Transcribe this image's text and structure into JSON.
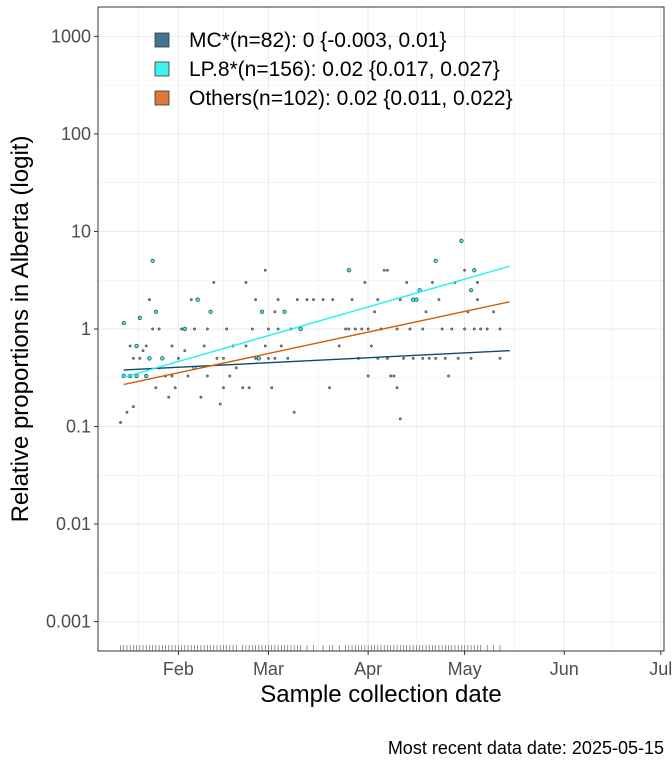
{
  "chart_data": {
    "type": "scatter",
    "xlabel": "Sample collection date",
    "ylabel": "Relative proportions in Alberta (logit)",
    "caption": "Most recent data date: 2025-05-15",
    "y_scale": "log",
    "ylim": [
      0.0005,
      2000
    ],
    "y_ticks": [
      0.001,
      0.01,
      0.1,
      1,
      10,
      100,
      1000
    ],
    "y_tick_labels": [
      "0.001",
      "0.01",
      "0.1",
      "1",
      "10",
      "100",
      "1000"
    ],
    "xlim": [
      "2025-01-07",
      "2025-07-02"
    ],
    "x_ticks": [
      "2025-02-01",
      "2025-03-01",
      "2025-04-01",
      "2025-05-01",
      "2025-06-01",
      "2025-07-01"
    ],
    "x_tick_labels": [
      "Feb",
      "Mar",
      "Apr",
      "May",
      "Jun",
      "Jul"
    ],
    "grid": true,
    "legend_position": "top-left",
    "colors": {
      "mc": "#0b4a6e",
      "lp8": "#1ef2f2",
      "others": "#d55e00",
      "legend_mc": "#44758f",
      "legend_lp8": "#3ff2f2",
      "legend_others": "#de7a35",
      "points": "#2a2a2a",
      "grid": "#ebebeb",
      "panel_border": "#333333"
    },
    "series": [
      {
        "key": "mc",
        "name": "MC*(n=82): 0 {-0.003, 0.01}",
        "fit": {
          "x": [
            "2025-01-15",
            "2025-05-15"
          ],
          "y": [
            0.38,
            0.6
          ]
        }
      },
      {
        "key": "lp8",
        "name": "LP.8*(n=156): 0.02 {0.017, 0.027}",
        "fit": {
          "x": [
            "2025-01-15",
            "2025-05-15"
          ],
          "y": [
            0.32,
            4.4
          ]
        }
      },
      {
        "key": "others",
        "name": "Others(n=102): 0.02 {0.011, 0.022}",
        "fit": {
          "x": [
            "2025-01-15",
            "2025-05-15"
          ],
          "y": [
            0.27,
            1.9
          ]
        }
      }
    ],
    "points": [
      {
        "x": "2025-01-14",
        "y": 0.11,
        "s": "mc"
      },
      {
        "x": "2025-01-15",
        "y": 0.33,
        "s": "lp8"
      },
      {
        "x": "2025-01-15",
        "y": 1.15,
        "s": "lp8"
      },
      {
        "x": "2025-01-16",
        "y": 0.14,
        "s": "mc"
      },
      {
        "x": "2025-01-17",
        "y": 0.67,
        "s": "mc"
      },
      {
        "x": "2025-01-17",
        "y": 0.33,
        "s": "lp8"
      },
      {
        "x": "2025-01-18",
        "y": 0.16,
        "s": "mc"
      },
      {
        "x": "2025-01-18",
        "y": 0.5,
        "s": "mc"
      },
      {
        "x": "2025-01-19",
        "y": 0.67,
        "s": "lp8"
      },
      {
        "x": "2025-01-19",
        "y": 0.33,
        "s": "lp8"
      },
      {
        "x": "2025-01-20",
        "y": 1.3,
        "s": "lp8"
      },
      {
        "x": "2025-01-20",
        "y": 0.5,
        "s": "mc"
      },
      {
        "x": "2025-01-21",
        "y": 0.6,
        "s": "mc"
      },
      {
        "x": "2025-01-22",
        "y": 0.67,
        "s": "mc"
      },
      {
        "x": "2025-01-22",
        "y": 0.33,
        "s": "lp8"
      },
      {
        "x": "2025-01-23",
        "y": 2.0,
        "s": "mc"
      },
      {
        "x": "2025-01-23",
        "y": 0.5,
        "s": "lp8"
      },
      {
        "x": "2025-01-24",
        "y": 5.0,
        "s": "lp8"
      },
      {
        "x": "2025-01-24",
        "y": 1.0,
        "s": "mc"
      },
      {
        "x": "2025-01-25",
        "y": 1.5,
        "s": "lp8"
      },
      {
        "x": "2025-01-25",
        "y": 0.25,
        "s": "mc"
      },
      {
        "x": "2025-01-26",
        "y": 1.0,
        "s": "mc"
      },
      {
        "x": "2025-01-26",
        "y": 0.4,
        "s": "mc"
      },
      {
        "x": "2025-01-27",
        "y": 0.5,
        "s": "lp8"
      },
      {
        "x": "2025-01-28",
        "y": 0.33,
        "s": "mc"
      },
      {
        "x": "2025-01-29",
        "y": 0.2,
        "s": "mc"
      },
      {
        "x": "2025-01-30",
        "y": 0.67,
        "s": "mc"
      },
      {
        "x": "2025-01-30",
        "y": 0.33,
        "s": "mc"
      },
      {
        "x": "2025-01-31",
        "y": 0.25,
        "s": "mc"
      },
      {
        "x": "2025-02-01",
        "y": 0.5,
        "s": "mc"
      },
      {
        "x": "2025-02-02",
        "y": 1.0,
        "s": "mc"
      },
      {
        "x": "2025-02-03",
        "y": 1.0,
        "s": "lp8"
      },
      {
        "x": "2025-02-03",
        "y": 0.6,
        "s": "mc"
      },
      {
        "x": "2025-02-04",
        "y": 0.33,
        "s": "mc"
      },
      {
        "x": "2025-02-05",
        "y": 2.0,
        "s": "mc"
      },
      {
        "x": "2025-02-06",
        "y": 1.0,
        "s": "mc"
      },
      {
        "x": "2025-02-06",
        "y": 0.4,
        "s": "lp8"
      },
      {
        "x": "2025-02-07",
        "y": 2.0,
        "s": "lp8"
      },
      {
        "x": "2025-02-08",
        "y": 0.2,
        "s": "mc"
      },
      {
        "x": "2025-02-09",
        "y": 0.67,
        "s": "mc"
      },
      {
        "x": "2025-02-10",
        "y": 1.0,
        "s": "mc"
      },
      {
        "x": "2025-02-10",
        "y": 0.33,
        "s": "mc"
      },
      {
        "x": "2025-02-11",
        "y": 1.5,
        "s": "lp8"
      },
      {
        "x": "2025-02-12",
        "y": 3.0,
        "s": "mc"
      },
      {
        "x": "2025-02-13",
        "y": 0.5,
        "s": "mc"
      },
      {
        "x": "2025-02-14",
        "y": 0.17,
        "s": "mc"
      },
      {
        "x": "2025-02-15",
        "y": 0.5,
        "s": "mc"
      },
      {
        "x": "2025-02-15",
        "y": 0.25,
        "s": "mc"
      },
      {
        "x": "2025-02-16",
        "y": 1.0,
        "s": "mc"
      },
      {
        "x": "2025-02-17",
        "y": 0.33,
        "s": "mc"
      },
      {
        "x": "2025-02-18",
        "y": 0.67,
        "s": "mc"
      },
      {
        "x": "2025-02-19",
        "y": 0.4,
        "s": "mc"
      },
      {
        "x": "2025-02-21",
        "y": 0.25,
        "s": "mc"
      },
      {
        "x": "2025-02-22",
        "y": 3.0,
        "s": "mc"
      },
      {
        "x": "2025-02-22",
        "y": 0.67,
        "s": "mc"
      },
      {
        "x": "2025-02-23",
        "y": 0.25,
        "s": "mc"
      },
      {
        "x": "2025-02-24",
        "y": 1.0,
        "s": "mc"
      },
      {
        "x": "2025-02-25",
        "y": 2.0,
        "s": "mc"
      },
      {
        "x": "2025-02-25",
        "y": 0.5,
        "s": "mc"
      },
      {
        "x": "2025-02-26",
        "y": 0.5,
        "s": "lp8"
      },
      {
        "x": "2025-02-27",
        "y": 1.5,
        "s": "lp8"
      },
      {
        "x": "2025-02-28",
        "y": 4.0,
        "s": "mc"
      },
      {
        "x": "2025-02-28",
        "y": 0.67,
        "s": "mc"
      },
      {
        "x": "2025-03-01",
        "y": 1.0,
        "s": "mc"
      },
      {
        "x": "2025-03-01",
        "y": 0.5,
        "s": "mc"
      },
      {
        "x": "2025-03-02",
        "y": 0.25,
        "s": "mc"
      },
      {
        "x": "2025-03-03",
        "y": 1.5,
        "s": "mc"
      },
      {
        "x": "2025-03-03",
        "y": 0.5,
        "s": "mc"
      },
      {
        "x": "2025-03-04",
        "y": 2.0,
        "s": "mc"
      },
      {
        "x": "2025-03-04",
        "y": 1.0,
        "s": "mc"
      },
      {
        "x": "2025-03-05",
        "y": 0.67,
        "s": "mc"
      },
      {
        "x": "2025-03-06",
        "y": 1.5,
        "s": "lp8"
      },
      {
        "x": "2025-03-07",
        "y": 0.5,
        "s": "mc"
      },
      {
        "x": "2025-03-08",
        "y": 1.0,
        "s": "mc"
      },
      {
        "x": "2025-03-09",
        "y": 0.14,
        "s": "mc"
      },
      {
        "x": "2025-03-10",
        "y": 2.0,
        "s": "mc"
      },
      {
        "x": "2025-03-11",
        "y": 1.0,
        "s": "lp8"
      },
      {
        "x": "2025-03-13",
        "y": 2.0,
        "s": "mc"
      },
      {
        "x": "2025-03-15",
        "y": 2.0,
        "s": "mc"
      },
      {
        "x": "2025-03-18",
        "y": 2.0,
        "s": "mc"
      },
      {
        "x": "2025-03-20",
        "y": 0.25,
        "s": "mc"
      },
      {
        "x": "2025-03-21",
        "y": 2.0,
        "s": "mc"
      },
      {
        "x": "2025-03-23",
        "y": 0.67,
        "s": "mc"
      },
      {
        "x": "2025-03-25",
        "y": 1.0,
        "s": "mc"
      },
      {
        "x": "2025-03-26",
        "y": 4.0,
        "s": "lp8"
      },
      {
        "x": "2025-03-26",
        "y": 1.0,
        "s": "mc"
      },
      {
        "x": "2025-03-27",
        "y": 2.0,
        "s": "mc"
      },
      {
        "x": "2025-03-28",
        "y": 1.0,
        "s": "mc"
      },
      {
        "x": "2025-03-29",
        "y": 0.5,
        "s": "mc"
      },
      {
        "x": "2025-03-30",
        "y": 1.0,
        "s": "mc"
      },
      {
        "x": "2025-03-31",
        "y": 3.0,
        "s": "mc"
      },
      {
        "x": "2025-04-01",
        "y": 1.0,
        "s": "mc"
      },
      {
        "x": "2025-04-01",
        "y": 0.33,
        "s": "mc"
      },
      {
        "x": "2025-04-02",
        "y": 0.67,
        "s": "mc"
      },
      {
        "x": "2025-04-03",
        "y": 1.5,
        "s": "mc"
      },
      {
        "x": "2025-04-04",
        "y": 2.0,
        "s": "mc"
      },
      {
        "x": "2025-04-04",
        "y": 0.5,
        "s": "mc"
      },
      {
        "x": "2025-04-05",
        "y": 1.0,
        "s": "mc"
      },
      {
        "x": "2025-04-06",
        "y": 4.0,
        "s": "mc"
      },
      {
        "x": "2025-04-07",
        "y": 4.0,
        "s": "mc"
      },
      {
        "x": "2025-04-07",
        "y": 0.5,
        "s": "mc"
      },
      {
        "x": "2025-04-08",
        "y": 0.33,
        "s": "mc"
      },
      {
        "x": "2025-04-09",
        "y": 0.33,
        "s": "mc"
      },
      {
        "x": "2025-04-10",
        "y": 1.0,
        "s": "mc"
      },
      {
        "x": "2025-04-10",
        "y": 0.25,
        "s": "mc"
      },
      {
        "x": "2025-04-11",
        "y": 0.12,
        "s": "mc"
      },
      {
        "x": "2025-04-11",
        "y": 2.0,
        "s": "mc"
      },
      {
        "x": "2025-04-12",
        "y": 0.5,
        "s": "mc"
      },
      {
        "x": "2025-04-13",
        "y": 3.0,
        "s": "mc"
      },
      {
        "x": "2025-04-14",
        "y": 1.0,
        "s": "mc"
      },
      {
        "x": "2025-04-15",
        "y": 0.5,
        "s": "mc"
      },
      {
        "x": "2025-04-15",
        "y": 2.0,
        "s": "lp8"
      },
      {
        "x": "2025-04-16",
        "y": 2.0,
        "s": "lp8"
      },
      {
        "x": "2025-04-17",
        "y": 2.5,
        "s": "lp8"
      },
      {
        "x": "2025-04-18",
        "y": 1.0,
        "s": "mc"
      },
      {
        "x": "2025-04-18",
        "y": 0.5,
        "s": "mc"
      },
      {
        "x": "2025-04-19",
        "y": 1.5,
        "s": "mc"
      },
      {
        "x": "2025-04-20",
        "y": 0.5,
        "s": "mc"
      },
      {
        "x": "2025-04-21",
        "y": 3.0,
        "s": "mc"
      },
      {
        "x": "2025-04-22",
        "y": 5.0,
        "s": "lp8"
      },
      {
        "x": "2025-04-22",
        "y": 0.5,
        "s": "mc"
      },
      {
        "x": "2025-04-23",
        "y": 2.0,
        "s": "mc"
      },
      {
        "x": "2025-04-24",
        "y": 1.0,
        "s": "mc"
      },
      {
        "x": "2025-04-25",
        "y": 0.5,
        "s": "mc"
      },
      {
        "x": "2025-04-26",
        "y": 0.33,
        "s": "mc"
      },
      {
        "x": "2025-04-27",
        "y": 1.0,
        "s": "mc"
      },
      {
        "x": "2025-04-28",
        "y": 3.0,
        "s": "mc"
      },
      {
        "x": "2025-04-29",
        "y": 0.5,
        "s": "mc"
      },
      {
        "x": "2025-04-30",
        "y": 8.0,
        "s": "lp8"
      },
      {
        "x": "2025-05-01",
        "y": 4.0,
        "s": "mc"
      },
      {
        "x": "2025-05-01",
        "y": 1.0,
        "s": "mc"
      },
      {
        "x": "2025-05-02",
        "y": 1.5,
        "s": "mc"
      },
      {
        "x": "2025-05-03",
        "y": 0.5,
        "s": "mc"
      },
      {
        "x": "2025-05-03",
        "y": 2.5,
        "s": "lp8"
      },
      {
        "x": "2025-05-04",
        "y": 4.0,
        "s": "lp8"
      },
      {
        "x": "2025-05-04",
        "y": 1.0,
        "s": "mc"
      },
      {
        "x": "2025-05-05",
        "y": 3.0,
        "s": "mc"
      },
      {
        "x": "2025-05-05",
        "y": 2.0,
        "s": "mc"
      },
      {
        "x": "2025-05-06",
        "y": 1.0,
        "s": "mc"
      },
      {
        "x": "2025-05-08",
        "y": 1.0,
        "s": "mc"
      },
      {
        "x": "2025-05-10",
        "y": 1.5,
        "s": "mc"
      },
      {
        "x": "2025-05-12",
        "y": 0.5,
        "s": "mc"
      },
      {
        "x": "2025-05-12",
        "y": 1.0,
        "s": "mc"
      }
    ]
  }
}
